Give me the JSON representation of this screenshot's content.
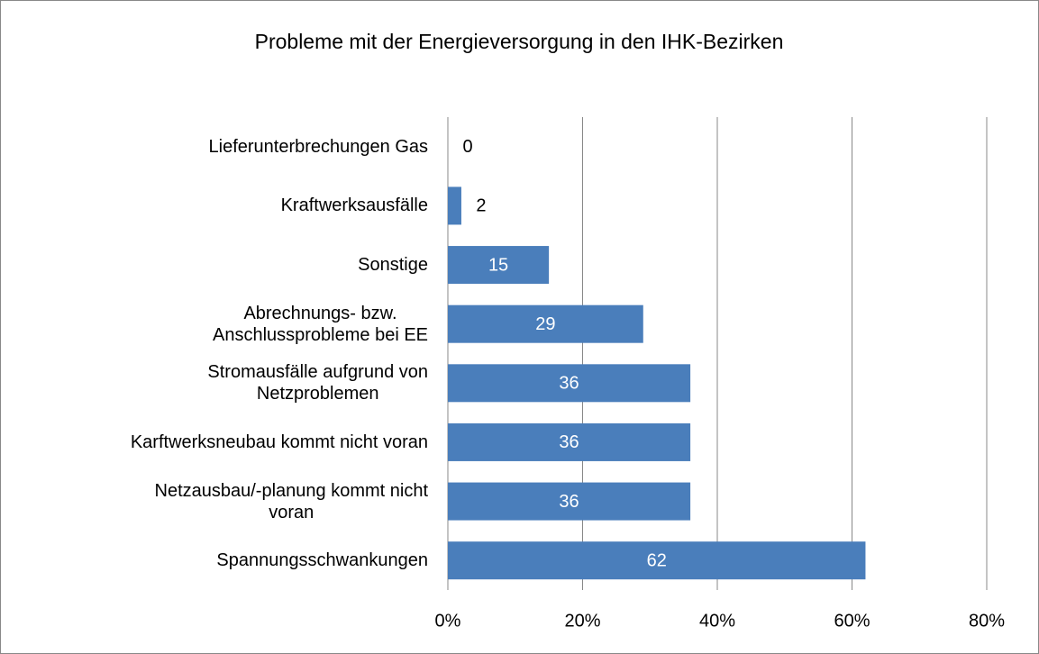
{
  "chart_data": {
    "type": "bar",
    "orientation": "horizontal",
    "title": "Probleme mit der Energieversorgung in den IHK-Bezirken",
    "categories": [
      "Lieferunterbrechungen Gas",
      "Kraftwerksausfälle",
      "Sonstige",
      "Abrechnungs- bzw.\nAnschlussprobleme bei EE",
      "Stromausfälle aufgrund von\nNetzproblemen",
      "Karftwerksneubau kommt nicht voran",
      "Netzausbau/-planung kommt nicht\nvoran",
      "Spannungsschwankungen"
    ],
    "values": [
      0,
      2,
      15,
      29,
      36,
      36,
      36,
      62
    ],
    "color": "#4a7ebb",
    "xlim": [
      0,
      80
    ],
    "xticks": [
      {
        "value": 0,
        "label": "0%"
      },
      {
        "value": 20,
        "label": "20%"
      },
      {
        "value": 40,
        "label": "40%"
      },
      {
        "value": 60,
        "label": "60%"
      },
      {
        "value": 80,
        "label": "80%"
      }
    ],
    "grid": true
  }
}
